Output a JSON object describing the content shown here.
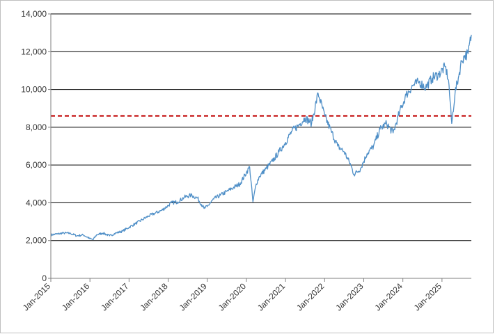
{
  "chart_data": {
    "type": "line",
    "title": "",
    "xlabel": "",
    "ylabel": "",
    "ylim": [
      0,
      14000
    ],
    "yticks": [
      0,
      2000,
      4000,
      6000,
      8000,
      10000,
      12000,
      14000
    ],
    "ytick_labels": [
      "0",
      "2,000",
      "4,000",
      "6,000",
      "8,000",
      "10,000",
      "12,000",
      "14,000"
    ],
    "xlim": [
      "2015-01",
      "2025-10"
    ],
    "xticks": [
      "2015-01",
      "2016-01",
      "2017-01",
      "2018-01",
      "2019-01",
      "2020-01",
      "2021-01",
      "2022-01",
      "2023-01",
      "2024-01",
      "2025-01"
    ],
    "xtick_labels": [
      "Jan-2015",
      "Jan-2016",
      "Jan-2017",
      "Jan-2018",
      "Jan-2019",
      "Jan-2020",
      "Jan-2021",
      "Jan-2022",
      "Jan-2023",
      "Jan-2024",
      "Jan-2025"
    ],
    "grid": true,
    "legend": "none",
    "colors": {
      "series": "#4f8fc7",
      "reference": "#c00000",
      "grid": "#000000"
    },
    "reference_line": {
      "value": 8600,
      "style": "dashed"
    },
    "series": [
      {
        "x": [
          "2015-01",
          "2015-03",
          "2015-05",
          "2015-07",
          "2015-09",
          "2015-11",
          "2016-01",
          "2016-02",
          "2016-03",
          "2016-05",
          "2016-07",
          "2016-09",
          "2016-11",
          "2017-01",
          "2017-03",
          "2017-05",
          "2017-07",
          "2017-09",
          "2017-11",
          "2018-01",
          "2018-02",
          "2018-04",
          "2018-06",
          "2018-08",
          "2018-10",
          "2018-12",
          "2019-01",
          "2019-03",
          "2019-05",
          "2019-07",
          "2019-09",
          "2019-11",
          "2020-01",
          "2020-02",
          "2020-03",
          "2020-04",
          "2020-05",
          "2020-07",
          "2020-09",
          "2020-11",
          "2021-01",
          "2021-03",
          "2021-05",
          "2021-07",
          "2021-09",
          "2021-11",
          "2022-01",
          "2022-03",
          "2022-05",
          "2022-07",
          "2022-09",
          "2022-10",
          "2022-12",
          "2023-02",
          "2023-04",
          "2023-06",
          "2023-08",
          "2023-10",
          "2023-12",
          "2024-02",
          "2024-04",
          "2024-06",
          "2024-08",
          "2024-10",
          "2024-12",
          "2025-02",
          "2025-03",
          "2025-04",
          "2025-05",
          "2025-06",
          "2025-07",
          "2025-08",
          "2025-09",
          "2025-10"
        ],
        "values": [
          2300,
          2350,
          2400,
          2380,
          2250,
          2300,
          2100,
          2050,
          2300,
          2400,
          2250,
          2400,
          2500,
          2700,
          2900,
          3100,
          3300,
          3450,
          3600,
          3850,
          4000,
          4050,
          4300,
          4400,
          4250,
          3700,
          3800,
          4200,
          4400,
          4600,
          4800,
          5000,
          5600,
          5900,
          4050,
          5000,
          5400,
          5800,
          6200,
          6700,
          7200,
          7800,
          8100,
          8500,
          8200,
          9800,
          8600,
          7800,
          7000,
          6700,
          6000,
          5500,
          5800,
          6600,
          7000,
          7900,
          8200,
          7700,
          8800,
          9700,
          10200,
          10400,
          10100,
          10600,
          10800,
          11200,
          10500,
          8200,
          9800,
          10600,
          11500,
          11800,
          11900,
          12900
        ]
      }
    ]
  }
}
